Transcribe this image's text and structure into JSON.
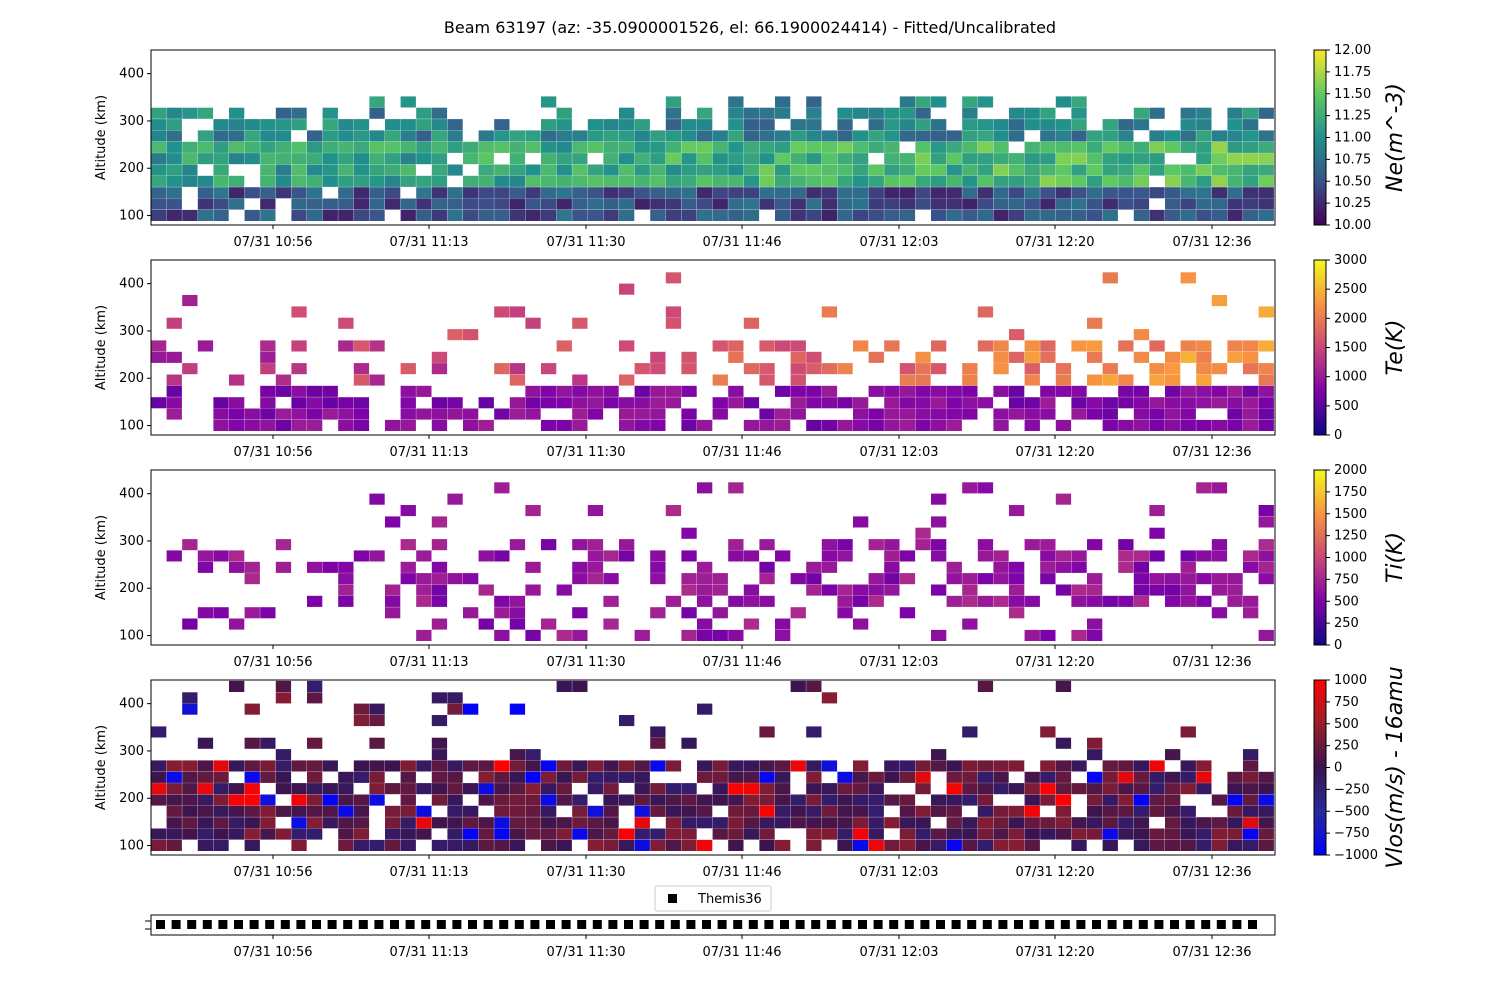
{
  "figure_title": "Beam 63197 (az: -35.0900001526, el: 66.1900024414) - Fitted/Uncalibrated",
  "x_tick_labels": [
    "07/31 10:56",
    "07/31 11:13",
    "07/31 11:30",
    "07/31 11:46",
    "07/31 12:03",
    "07/31 12:20",
    "07/31 12:36"
  ],
  "legend_label": "Themis36",
  "chart_data": [
    {
      "type": "heatmap",
      "parameter": "Ne",
      "ylabel": "Altitude (km)",
      "yticks": [
        100,
        200,
        300,
        400
      ],
      "ylim": [
        80,
        450
      ],
      "colorbar": {
        "label": "Ne(m^-3)",
        "colormap": "viridis",
        "range": [
          10.0,
          12.0
        ],
        "ticks": [
          "10.00",
          "10.25",
          "10.50",
          "10.75",
          "11.00",
          "11.25",
          "11.50",
          "11.75",
          "12.00"
        ]
      },
      "pattern": "dense fill 100-340 km; values mostly 10.3-11.4, higher (~11.3) near 250 km"
    },
    {
      "type": "heatmap",
      "parameter": "Te",
      "ylabel": "Altitude (km)",
      "yticks": [
        100,
        200,
        300,
        400
      ],
      "ylim": [
        80,
        450
      ],
      "colorbar": {
        "label": "Te(K)",
        "colormap": "plasma",
        "range": [
          0,
          3000
        ],
        "ticks": [
          "0",
          "500",
          "1000",
          "1500",
          "2000",
          "2500",
          "3000"
        ]
      },
      "pattern": "sparse; ~500-1000 K below 180 km, 1500-2500 K near 200-260 km after 11:46"
    },
    {
      "type": "heatmap",
      "parameter": "Ti",
      "ylabel": "Altitude (km)",
      "yticks": [
        100,
        200,
        300,
        400
      ],
      "ylim": [
        80,
        450
      ],
      "colorbar": {
        "label": "Ti(K)",
        "colormap": "plasma",
        "range": [
          0,
          2000
        ],
        "ticks": [
          "0",
          "250",
          "500",
          "750",
          "1000",
          "1250",
          "1500",
          "1750",
          "2000"
        ]
      },
      "pattern": "sparse; mostly 400-800 K at 150-300 km"
    },
    {
      "type": "heatmap",
      "parameter": "Vlos",
      "ylabel": "Altitude (km)",
      "yticks": [
        100,
        200,
        300,
        400
      ],
      "ylim": [
        80,
        450
      ],
      "colorbar": {
        "label": "Vlos(m/s) - 16amu",
        "colormap": "bwr-dark",
        "range": [
          -1000,
          1000
        ],
        "ticks": [
          "-1000",
          "-750",
          "-500",
          "-250",
          "0",
          "250",
          "500",
          "750",
          "1000"
        ]
      },
      "pattern": "dense below 290 km, mostly -250 to +300 m/s; scattered +/-1000 above"
    },
    {
      "type": "scatter",
      "series": [
        {
          "name": "Themis36",
          "marker": "square",
          "color": "#000000"
        }
      ],
      "pattern": "continuous row of markers across full time range"
    }
  ],
  "colors": {
    "vlos_pos": "#ff0000",
    "vlos_neg": "#0000ff",
    "marker": "#000000"
  }
}
